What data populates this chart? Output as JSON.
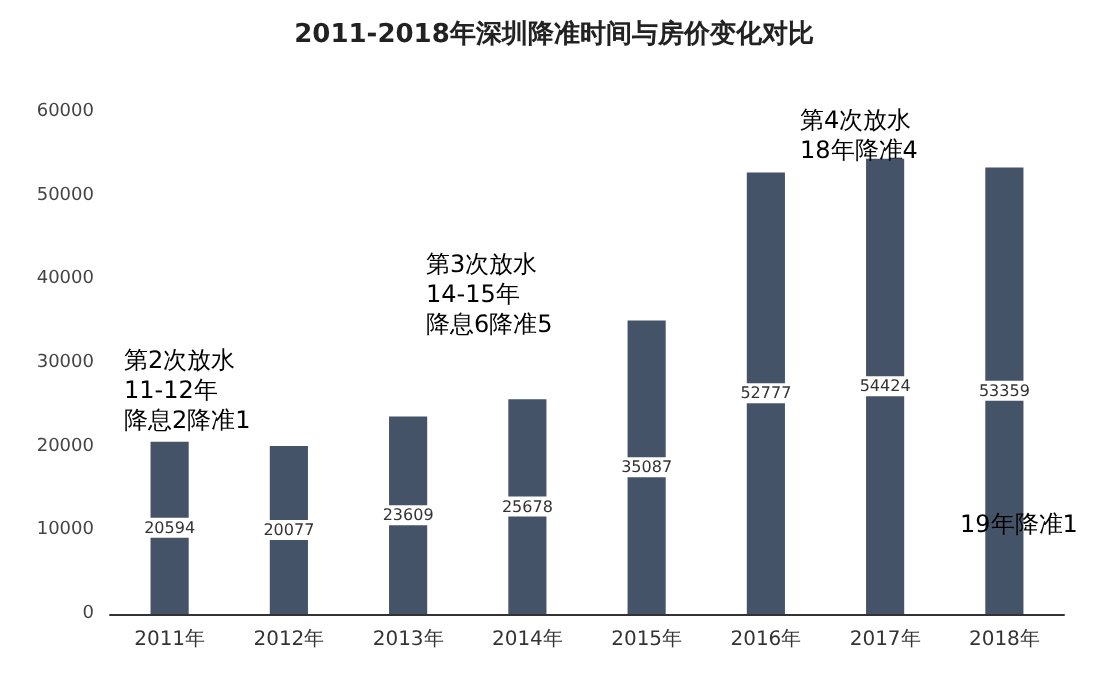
{
  "chart_data": {
    "type": "bar",
    "title": "2011-2018年深圳降准时间与房价变化对比",
    "categories": [
      "2011年",
      "2012年",
      "2013年",
      "2014年",
      "2015年",
      "2016年",
      "2017年",
      "2018年"
    ],
    "values": [
      20594,
      20077,
      23609,
      25678,
      35087,
      52777,
      54424,
      53359
    ],
    "color": "#455368",
    "data_labels": true,
    "grid": false,
    "ylim": [
      0,
      60000
    ],
    "yticks": [
      0,
      10000,
      20000,
      30000,
      40000,
      50000,
      60000
    ],
    "annotations": [
      "第2次放水",
      "11-12年",
      "降息2降准1",
      "第3次放水",
      "14-15年",
      "降息6降准5",
      "第4次放水",
      "18年降准4",
      "19年降准1"
    ]
  }
}
